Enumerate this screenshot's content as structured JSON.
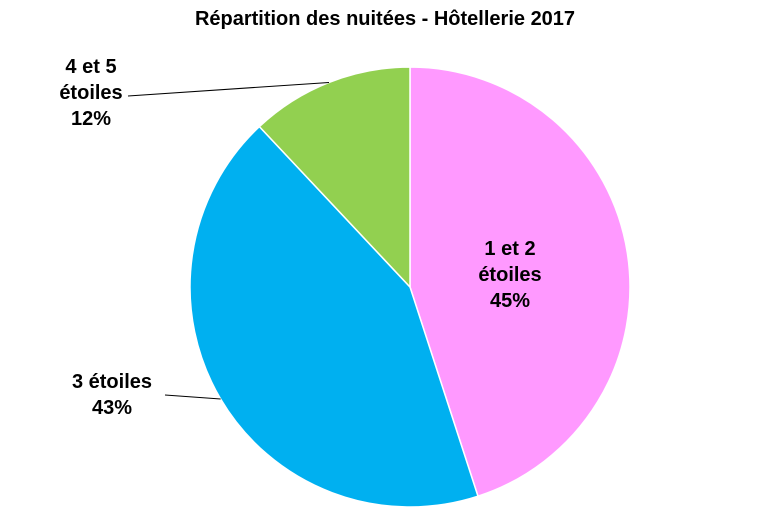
{
  "chart_data": {
    "type": "pie",
    "title": "Répartition des nuitées - Hôtellerie 2017",
    "slices": [
      {
        "label": "1 et 2 étoiles",
        "label_lines": [
          "1 et 2",
          "étoiles"
        ],
        "value": 45,
        "value_text": "45%",
        "color": "#ff99ff"
      },
      {
        "label": "3 étoiles",
        "label_lines": [
          "3 étoiles"
        ],
        "value": 43,
        "value_text": "43%",
        "color": "#00b0f0"
      },
      {
        "label": "4 et 5 étoiles",
        "label_lines": [
          "4 et 5",
          "étoiles"
        ],
        "value": 12,
        "value_text": "12%",
        "color": "#92d050"
      }
    ],
    "start": "12 o'clock",
    "direction": "clockwise"
  }
}
